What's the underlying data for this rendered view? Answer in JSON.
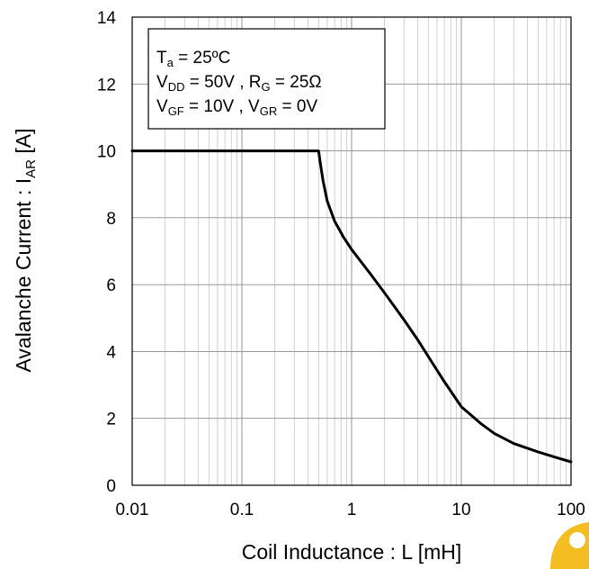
{
  "chart_data": {
    "type": "line",
    "title": "",
    "xlabel": {
      "main": "Coil Inductance : L [mH]"
    },
    "ylabel": {
      "main": "Avalanche Current : I",
      "sub": "AR",
      "tail": " [A]"
    },
    "x_scale": "log",
    "xlim": [
      0.01,
      100
    ],
    "ylim": [
      0,
      14
    ],
    "x_ticks": [
      0.01,
      0.1,
      1,
      10,
      100
    ],
    "x_tick_labels": [
      "0.01",
      "0.1",
      "1",
      "10",
      "100"
    ],
    "y_ticks": [
      0,
      2,
      4,
      6,
      8,
      10,
      12,
      14
    ],
    "y_tick_labels": [
      "0",
      "2",
      "4",
      "6",
      "8",
      "10",
      "12",
      "14"
    ],
    "grid": true,
    "conditions": [
      [
        {
          "t": "T"
        },
        {
          "t": "a",
          "sub": true
        },
        {
          "t": " = 25ºC"
        }
      ],
      [
        {
          "t": "V"
        },
        {
          "t": "DD",
          "sub": true
        },
        {
          "t": " = 50V , R"
        },
        {
          "t": "G",
          "sub": true
        },
        {
          "t": " = 25Ω"
        }
      ],
      [
        {
          "t": "V"
        },
        {
          "t": "GF",
          "sub": true
        },
        {
          "t": " = 10V , V"
        },
        {
          "t": "GR",
          "sub": true
        },
        {
          "t": " = 0V"
        }
      ]
    ],
    "series": [
      {
        "color": "#000000",
        "points": [
          [
            0.01,
            10
          ],
          [
            0.1,
            10
          ],
          [
            0.5,
            10
          ],
          [
            0.52,
            9.6
          ],
          [
            0.55,
            9.1
          ],
          [
            0.6,
            8.5
          ],
          [
            0.7,
            7.9
          ],
          [
            0.85,
            7.4
          ],
          [
            1,
            7.05
          ],
          [
            1.5,
            6.3
          ],
          [
            2,
            5.75
          ],
          [
            3,
            4.95
          ],
          [
            4,
            4.35
          ],
          [
            5,
            3.85
          ],
          [
            7,
            3.1
          ],
          [
            10,
            2.35
          ],
          [
            15,
            1.85
          ],
          [
            20,
            1.55
          ],
          [
            30,
            1.25
          ],
          [
            50,
            1.0
          ],
          [
            70,
            0.85
          ],
          [
            100,
            0.7
          ]
        ]
      }
    ]
  }
}
